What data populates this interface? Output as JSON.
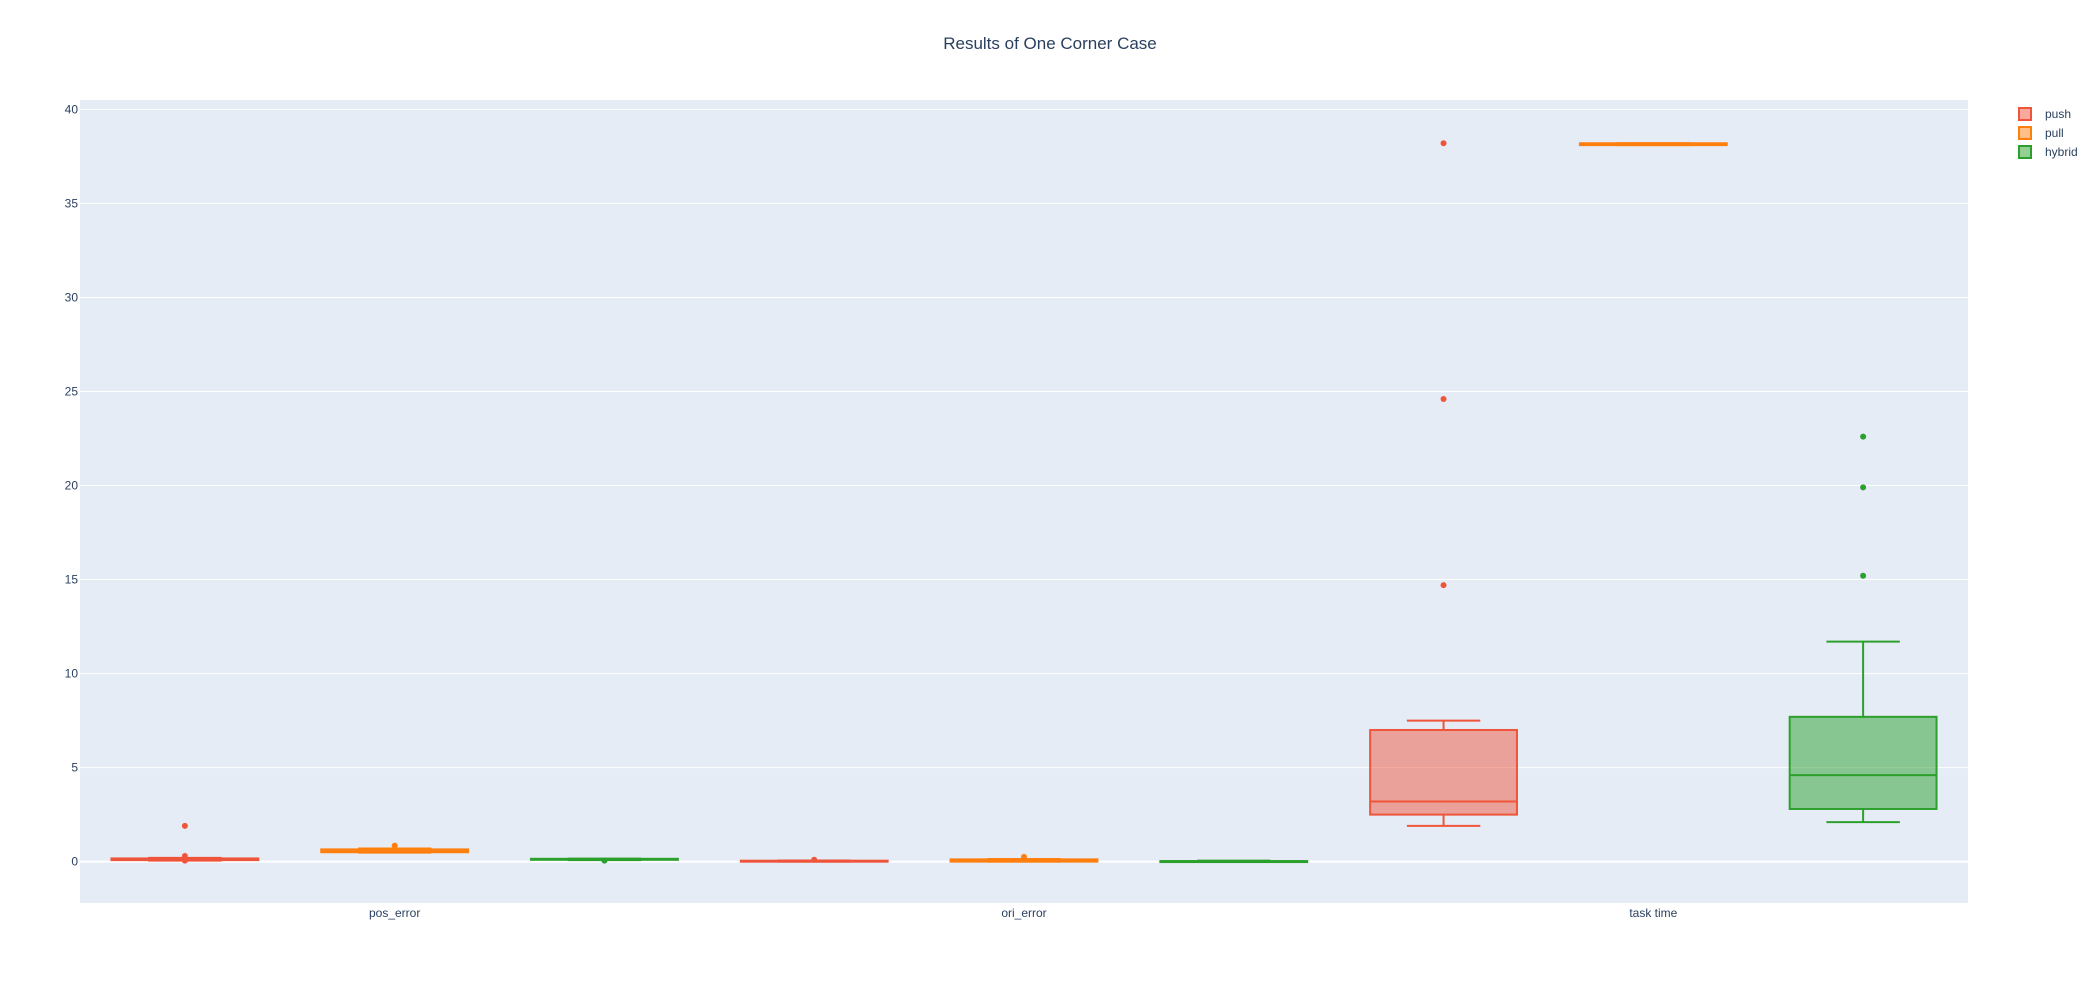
{
  "chart_data": {
    "type": "box",
    "title": "Results of One Corner Case",
    "categories": [
      "pos_error",
      "ori_error",
      "task time"
    ],
    "y_axis": {
      "range": [
        -2.2,
        40.5
      ],
      "ticks": [
        0,
        5,
        10,
        15,
        20,
        25,
        30,
        35,
        40
      ],
      "grid": true
    },
    "legend": {
      "position": "top-right",
      "entries": [
        "push",
        "pull",
        "hybrid"
      ]
    },
    "series": [
      {
        "name": "push",
        "color": "#EF553B",
        "boxes": [
          {
            "category": "pos_error",
            "q1": 0.08,
            "median": 0.12,
            "q3": 0.17,
            "lowerfence": 0.05,
            "upperfence": 0.2,
            "outliers": [
              1.9,
              0.3,
              0.05
            ]
          },
          {
            "category": "ori_error",
            "q1": 0.0,
            "median": 0.02,
            "q3": 0.05,
            "lowerfence": 0.0,
            "upperfence": 0.06,
            "outliers": [
              0.1
            ]
          },
          {
            "category": "task time",
            "q1": 2.5,
            "median": 3.2,
            "q3": 7.0,
            "lowerfence": 1.9,
            "upperfence": 7.5,
            "outliers": [
              14.7,
              24.6,
              38.2
            ]
          }
        ]
      },
      {
        "name": "pull",
        "color": "#FF7F0E",
        "boxes": [
          {
            "category": "pos_error",
            "q1": 0.5,
            "median": 0.55,
            "q3": 0.65,
            "lowerfence": 0.48,
            "upperfence": 0.7,
            "outliers": [
              0.85
            ]
          },
          {
            "category": "ori_error",
            "q1": 0.0,
            "median": 0.05,
            "q3": 0.12,
            "lowerfence": 0.0,
            "upperfence": 0.14,
            "outliers": [
              0.25
            ]
          },
          {
            "category": "task time",
            "q1": 38.1,
            "median": 38.15,
            "q3": 38.2,
            "lowerfence": 38.1,
            "upperfence": 38.2,
            "outliers": []
          }
        ]
      },
      {
        "name": "hybrid",
        "color": "#2CA02C",
        "boxes": [
          {
            "category": "pos_error",
            "q1": 0.1,
            "median": 0.12,
            "q3": 0.15,
            "lowerfence": 0.08,
            "upperfence": 0.16,
            "outliers": [
              0.05
            ]
          },
          {
            "category": "ori_error",
            "q1": 0.0,
            "median": 0.01,
            "q3": 0.03,
            "lowerfence": 0.0,
            "upperfence": 0.05,
            "outliers": []
          },
          {
            "category": "task time",
            "q1": 2.8,
            "median": 4.6,
            "q3": 7.7,
            "lowerfence": 2.1,
            "upperfence": 11.7,
            "outliers": [
              15.2,
              19.9,
              22.6
            ]
          }
        ]
      }
    ]
  }
}
